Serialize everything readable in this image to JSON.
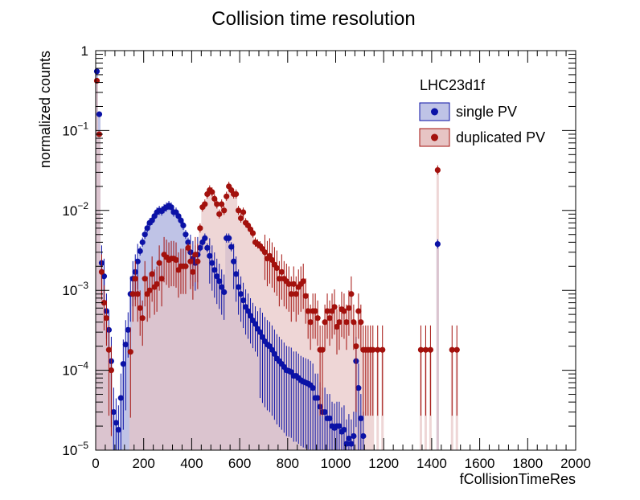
{
  "chart_data": {
    "type": "scatter",
    "title": "Collision time resolution",
    "xlabel": "fCollisionTimeRes",
    "ylabel": "normalized counts",
    "xlim": [
      0,
      2000
    ],
    "ylim": [
      1e-05,
      1
    ],
    "y_scale": "log",
    "x_ticks": [
      0,
      200,
      400,
      600,
      800,
      1000,
      1200,
      1400,
      1600,
      1800,
      2000
    ],
    "y_ticks": [
      {
        "value": 1e-05,
        "mantissa": "10",
        "exp": "−5"
      },
      {
        "value": 0.0001,
        "mantissa": "10",
        "exp": "−4"
      },
      {
        "value": 0.001,
        "mantissa": "10",
        "exp": "−3"
      },
      {
        "value": 0.01,
        "mantissa": "10",
        "exp": "−2"
      },
      {
        "value": 0.1,
        "mantissa": "10",
        "exp": "−1"
      },
      {
        "value": 1,
        "mantissa": "1",
        "exp": ""
      }
    ],
    "legend": {
      "title": "LHC23d1f",
      "placement": "top-right"
    },
    "grid": false,
    "series": [
      {
        "name": "single PV",
        "color": "#0b12a6",
        "fill": "#bfc3e6",
        "points": [
          [
            5,
            0.55
          ],
          [
            15,
            0.16
          ],
          [
            25,
            0.0022
          ],
          [
            35,
            0.0015
          ],
          [
            45,
            0.00055
          ],
          [
            55,
            0.00032
          ],
          [
            65,
            0.00013
          ],
          [
            75,
            3e-05
          ],
          [
            85,
            2.2e-05
          ],
          [
            95,
            1.8e-05
          ],
          [
            105,
            4.5e-05
          ],
          [
            115,
            0.00012
          ],
          [
            125,
            0.00021
          ],
          [
            135,
            0.00032
          ],
          [
            145,
            0.0009
          ],
          [
            155,
            0.0014
          ],
          [
            165,
            0.0017
          ],
          [
            175,
            0.0023
          ],
          [
            185,
            0.0031
          ],
          [
            195,
            0.004
          ],
          [
            205,
            0.005
          ],
          [
            215,
            0.006
          ],
          [
            225,
            0.007
          ],
          [
            235,
            0.0075
          ],
          [
            245,
            0.0085
          ],
          [
            255,
            0.0095
          ],
          [
            265,
            0.01
          ],
          [
            275,
            0.0098
          ],
          [
            285,
            0.0105
          ],
          [
            295,
            0.011
          ],
          [
            305,
            0.0115
          ],
          [
            315,
            0.011
          ],
          [
            325,
            0.0095
          ],
          [
            335,
            0.0095
          ],
          [
            345,
            0.0085
          ],
          [
            355,
            0.0075
          ],
          [
            365,
            0.0065
          ],
          [
            375,
            0.005
          ],
          [
            385,
            0.004
          ],
          [
            395,
            0.003
          ],
          [
            405,
            0.0025
          ],
          [
            415,
            0.0022
          ],
          [
            425,
            0.0028
          ],
          [
            435,
            0.0034
          ],
          [
            445,
            0.004
          ],
          [
            455,
            0.0045
          ],
          [
            465,
            0.0034
          ],
          [
            475,
            0.0027
          ],
          [
            485,
            0.0022
          ],
          [
            495,
            0.0018
          ],
          [
            505,
            0.0015
          ],
          [
            515,
            0.0013
          ],
          [
            525,
            0.0011
          ],
          [
            535,
            0.00095
          ],
          [
            545,
            0.0045
          ],
          [
            555,
            0.0045
          ],
          [
            565,
            0.0035
          ],
          [
            575,
            0.0023
          ],
          [
            585,
            0.0016
          ],
          [
            595,
            0.0011
          ],
          [
            605,
            0.0009
          ],
          [
            615,
            0.00075
          ],
          [
            625,
            0.00062
          ],
          [
            635,
            0.00055
          ],
          [
            645,
            0.00048
          ],
          [
            655,
            0.00042
          ],
          [
            665,
            0.00038
          ],
          [
            675,
            0.00033
          ],
          [
            685,
            0.0003
          ],
          [
            695,
            0.00026
          ],
          [
            705,
            0.00023
          ],
          [
            715,
            0.00021
          ],
          [
            725,
            0.0002
          ],
          [
            735,
            0.00018
          ],
          [
            745,
            0.00016
          ],
          [
            755,
            0.00014
          ],
          [
            765,
            0.00013
          ],
          [
            775,
            0.00012
          ],
          [
            785,
            0.00011
          ],
          [
            795,
            0.0001
          ],
          [
            805,
            9.8e-05
          ],
          [
            815,
            9.5e-05
          ],
          [
            825,
            8.5e-05
          ],
          [
            835,
            8.5e-05
          ],
          [
            845,
            8e-05
          ],
          [
            855,
            7.5e-05
          ],
          [
            865,
            7.2e-05
          ],
          [
            875,
            7e-05
          ],
          [
            885,
            6.8e-05
          ],
          [
            895,
            6.5e-05
          ],
          [
            905,
            6e-05
          ],
          [
            915,
            4.5e-05
          ],
          [
            925,
            4.5e-05
          ],
          [
            935,
            3.5e-05
          ],
          [
            945,
            3e-05
          ],
          [
            955,
            3e-05
          ],
          [
            965,
            2.5e-05
          ],
          [
            975,
            2.5e-05
          ],
          [
            985,
            2e-05
          ],
          [
            995,
            1.9e-05
          ],
          [
            1005,
            2e-05
          ],
          [
            1015,
            2e-05
          ],
          [
            1025,
            1.7e-05
          ],
          [
            1035,
            1.8e-05
          ],
          [
            1045,
            1.2e-05
          ],
          [
            1055,
            1.4e-05
          ],
          [
            1065,
            1.2e-05
          ],
          [
            1075,
            1.5e-05
          ],
          [
            1085,
            0.00013
          ],
          [
            1095,
            6e-05
          ],
          [
            1105,
            2.5e-05
          ],
          [
            1115,
            1.5e-05
          ],
          [
            1425,
            0.0038
          ]
        ]
      },
      {
        "name": "duplicated PV",
        "color": "#a3110d",
        "fill": "#e7c4c4",
        "points": [
          [
            5,
            0.42
          ],
          [
            15,
            0.09
          ],
          [
            25,
            0.0017
          ],
          [
            35,
            0.0007
          ],
          [
            45,
            0.00045
          ],
          [
            55,
            0.00018
          ],
          [
            65,
            0.0001
          ],
          [
            145,
            0.00017
          ],
          [
            155,
            0.0009
          ],
          [
            165,
            0.0014
          ],
          [
            175,
            0.0009
          ],
          [
            185,
            0.0006
          ],
          [
            195,
            0.00045
          ],
          [
            205,
            0.0014
          ],
          [
            215,
            0.0009
          ],
          [
            225,
            0.001
          ],
          [
            235,
            0.0016
          ],
          [
            245,
            0.0011
          ],
          [
            255,
            0.0012
          ],
          [
            265,
            0.0022
          ],
          [
            275,
            0.0014
          ],
          [
            285,
            0.0028
          ],
          [
            295,
            0.0026
          ],
          [
            305,
            0.0024
          ],
          [
            315,
            0.0025
          ],
          [
            325,
            0.0025
          ],
          [
            335,
            0.0024
          ],
          [
            345,
            0.0018
          ],
          [
            355,
            0.002
          ],
          [
            365,
            0.002
          ],
          [
            375,
            0.002
          ],
          [
            385,
            0.0034
          ],
          [
            395,
            0.0023
          ],
          [
            405,
            0.0017
          ],
          [
            415,
            0.0028
          ],
          [
            425,
            0.0023
          ],
          [
            435,
            0.006
          ],
          [
            445,
            0.011
          ],
          [
            455,
            0.012
          ],
          [
            465,
            0.016
          ],
          [
            475,
            0.018
          ],
          [
            485,
            0.017
          ],
          [
            495,
            0.014
          ],
          [
            505,
            0.012
          ],
          [
            515,
            0.009
          ],
          [
            525,
            0.012
          ],
          [
            535,
            0.01
          ],
          [
            545,
            0.015
          ],
          [
            555,
            0.02
          ],
          [
            565,
            0.018
          ],
          [
            575,
            0.016
          ],
          [
            585,
            0.016
          ],
          [
            595,
            0.01
          ],
          [
            605,
            0.008
          ],
          [
            615,
            0.0095
          ],
          [
            625,
            0.007
          ],
          [
            635,
            0.0065
          ],
          [
            645,
            0.0058
          ],
          [
            655,
            0.0052
          ],
          [
            665,
            0.004
          ],
          [
            675,
            0.0038
          ],
          [
            685,
            0.0036
          ],
          [
            695,
            0.0033
          ],
          [
            705,
            0.003
          ],
          [
            715,
            0.0025
          ],
          [
            725,
            0.0027
          ],
          [
            735,
            0.0024
          ],
          [
            745,
            0.0021
          ],
          [
            755,
            0.0019
          ],
          [
            765,
            0.0014
          ],
          [
            775,
            0.0017
          ],
          [
            785,
            0.0014
          ],
          [
            795,
            0.0013
          ],
          [
            805,
            0.0012
          ],
          [
            815,
            0.0009
          ],
          [
            825,
            0.0012
          ],
          [
            835,
            0.0009
          ],
          [
            845,
            0.0011
          ],
          [
            855,
            0.0012
          ],
          [
            865,
            0.0013
          ],
          [
            875,
            0.00085
          ],
          [
            885,
            0.00055
          ],
          [
            895,
            0.0004
          ],
          [
            905,
            0.00055
          ],
          [
            915,
            0.00055
          ],
          [
            925,
            0.00045
          ],
          [
            935,
            0.00018
          ],
          [
            945,
            0.00018
          ],
          [
            955,
            0.0004
          ],
          [
            965,
            0.00055
          ],
          [
            975,
            0.00045
          ],
          [
            985,
            0.00055
          ],
          [
            995,
            0.00062
          ],
          [
            1005,
            0.00035
          ],
          [
            1015,
            0.0004
          ],
          [
            1025,
            0.00058
          ],
          [
            1035,
            0.00055
          ],
          [
            1045,
            0.0004
          ],
          [
            1055,
            0.0006
          ],
          [
            1065,
            0.0009
          ],
          [
            1075,
            0.0004
          ],
          [
            1085,
            0.0002
          ],
          [
            1095,
            0.00055
          ],
          [
            1105,
            0.0004
          ],
          [
            1115,
            0.00018
          ],
          [
            1125,
            0.00018
          ],
          [
            1135,
            0.00018
          ],
          [
            1145,
            0.00018
          ],
          [
            1155,
            0.00018
          ],
          [
            1175,
            0.00018
          ],
          [
            1195,
            0.00018
          ],
          [
            1355,
            0.00018
          ],
          [
            1375,
            0.00018
          ],
          [
            1395,
            0.00018
          ],
          [
            1425,
            0.032
          ],
          [
            1485,
            0.00018
          ],
          [
            1505,
            0.00018
          ]
        ]
      }
    ]
  }
}
